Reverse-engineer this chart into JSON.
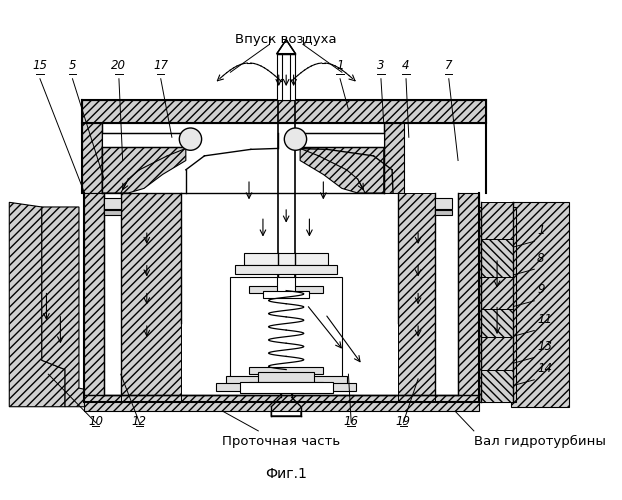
{
  "fig_label": "Фиг.1",
  "top_label": "Впуск воздуха",
  "label_proton": "Проточная часть",
  "label_shaft": "Вал гидротурбины",
  "bg_color": "#ffffff",
  "hatch_color": "#000000",
  "fs": 8.5,
  "fs_title": 9.5
}
